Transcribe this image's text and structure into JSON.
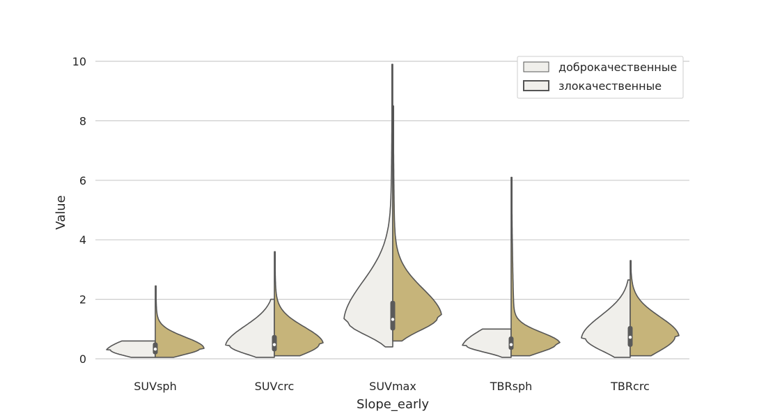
{
  "chart_data": {
    "type": "violin",
    "title": "",
    "xlabel": "Slope_early",
    "ylabel": "Value",
    "ylim": [
      0,
      10
    ],
    "yticks": [
      0,
      2,
      4,
      6,
      8,
      10
    ],
    "grid": true,
    "legend_position": "top-right",
    "categories": [
      "SUVsph",
      "SUVcrc",
      "SUVmax",
      "TBRsph",
      "TBRcrc"
    ],
    "series": [
      {
        "name": "доброкачественные",
        "color": "#f0efeb",
        "side": "left",
        "groups": [
          {
            "min": 0.05,
            "max": 0.6,
            "q1": 0.15,
            "median": 0.3,
            "q3": 0.5
          },
          {
            "min": 0.05,
            "max": 2.0,
            "q1": 0.25,
            "median": 0.45,
            "q3": 0.8
          },
          {
            "min": 0.4,
            "max": 9.9,
            "q1": 0.95,
            "median": 1.25,
            "q3": 1.95
          },
          {
            "min": 0.05,
            "max": 1.0,
            "q1": 0.3,
            "median": 0.45,
            "q3": 0.75
          },
          {
            "min": 0.05,
            "max": 2.65,
            "q1": 0.4,
            "median": 0.7,
            "q3": 1.1
          }
        ]
      },
      {
        "name": "злокачественные",
        "color": "#c6b47a",
        "side": "right",
        "groups": [
          {
            "min": 0.05,
            "max": 2.45,
            "q1": 0.2,
            "median": 0.35,
            "q3": 0.55
          },
          {
            "min": 0.1,
            "max": 3.6,
            "q1": 0.25,
            "median": 0.5,
            "q3": 0.8
          },
          {
            "min": 0.6,
            "max": 8.5,
            "q1": 1.1,
            "median": 1.4,
            "q3": 1.9
          },
          {
            "min": 0.1,
            "max": 6.1,
            "q1": 0.3,
            "median": 0.5,
            "q3": 0.7
          },
          {
            "min": 0.1,
            "max": 3.3,
            "q1": 0.4,
            "median": 0.75,
            "q3": 1.1
          }
        ]
      }
    ]
  }
}
